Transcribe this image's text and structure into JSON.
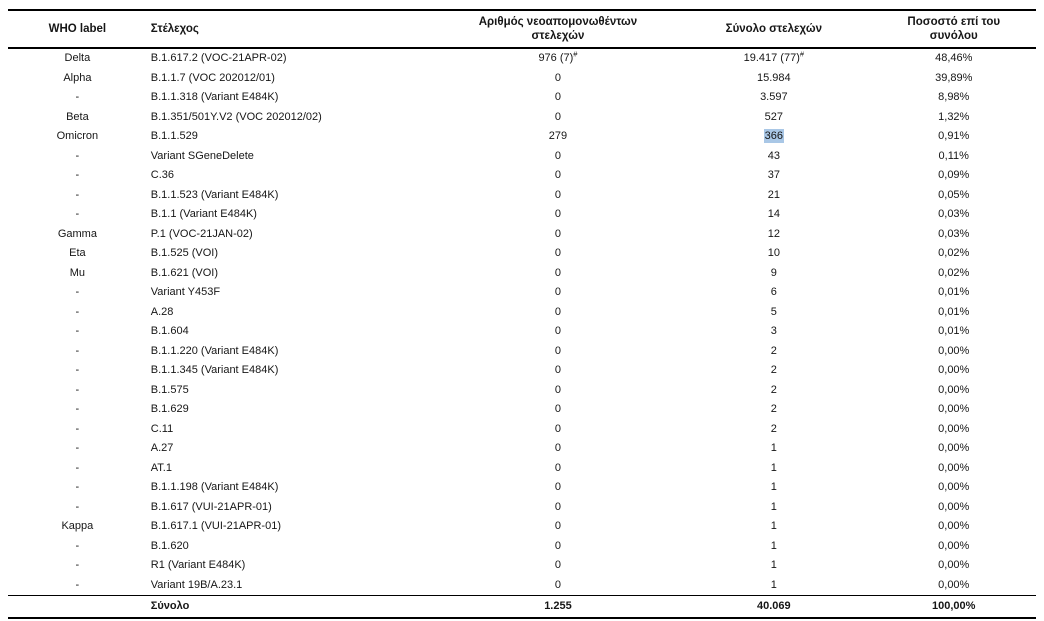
{
  "table": {
    "headers": {
      "who": "WHO label",
      "strain": "Στέλεχος",
      "new_isolates": "Αριθμός νεοαπομονωθέντων στελεχών",
      "total": "Σύνολο στελεχών",
      "pct": "Ποσοστό επί του συνόλου"
    },
    "rows": [
      {
        "who": "Delta",
        "strain": "B.1.617.2 (VOC-21APR-02)",
        "new_isolates": "976 (7)",
        "new_sup": "#",
        "total": "19.417 (77)",
        "total_sup": "#",
        "pct": "48,46%"
      },
      {
        "who": "Alpha",
        "strain": "B.1.1.7 (VOC 202012/01)",
        "new_isolates": "0",
        "total": "15.984",
        "pct": "39,89%"
      },
      {
        "who": "-",
        "strain": "B.1.1.318 (Variant E484K)",
        "new_isolates": "0",
        "total": "3.597",
        "pct": "8,98%"
      },
      {
        "who": "Beta",
        "strain": "B.1.351/501Y.V2 (VOC 202012/02)",
        "new_isolates": "0",
        "total": "527",
        "pct": "1,32%"
      },
      {
        "who": "Omicron",
        "strain": "B.1.1.529",
        "new_isolates": "279",
        "total": "366",
        "pct": "0,91%"
      },
      {
        "who": "-",
        "strain": "Variant SGeneDelete",
        "new_isolates": "0",
        "total": "43",
        "pct": "0,11%"
      },
      {
        "who": "-",
        "strain": "C.36",
        "new_isolates": "0",
        "total": "37",
        "pct": "0,09%"
      },
      {
        "who": "-",
        "strain": "B.1.1.523 (Variant E484K)",
        "new_isolates": "0",
        "total": "21",
        "pct": "0,05%"
      },
      {
        "who": "-",
        "strain": "B.1.1 (Variant E484K)",
        "new_isolates": "0",
        "total": "14",
        "pct": "0,03%"
      },
      {
        "who": "Gamma",
        "strain": "P.1 (VOC-21JAN-02)",
        "new_isolates": "0",
        "total": "12",
        "pct": "0,03%"
      },
      {
        "who": "Eta",
        "strain": "B.1.525 (VOI)",
        "new_isolates": "0",
        "total": "10",
        "pct": "0,02%"
      },
      {
        "who": "Mu",
        "strain": "B.1.621 (VOI)",
        "new_isolates": "0",
        "total": "9",
        "pct": "0,02%"
      },
      {
        "who": "-",
        "strain": "Variant Y453F",
        "new_isolates": "0",
        "total": "6",
        "pct": "0,01%"
      },
      {
        "who": "-",
        "strain": "A.28",
        "new_isolates": "0",
        "total": "5",
        "pct": "0,01%"
      },
      {
        "who": "-",
        "strain": "B.1.604",
        "new_isolates": "0",
        "total": "3",
        "pct": "0,01%"
      },
      {
        "who": "-",
        "strain": "B.1.1.220 (Variant E484K)",
        "new_isolates": "0",
        "total": "2",
        "pct": "0,00%"
      },
      {
        "who": "-",
        "strain": "B.1.1.345 (Variant E484K)",
        "new_isolates": "0",
        "total": "2",
        "pct": "0,00%"
      },
      {
        "who": "-",
        "strain": "B.1.575",
        "new_isolates": "0",
        "total": "2",
        "pct": "0,00%"
      },
      {
        "who": "-",
        "strain": "B.1.629",
        "new_isolates": "0",
        "total": "2",
        "pct": "0,00%"
      },
      {
        "who": "-",
        "strain": "C.11",
        "new_isolates": "0",
        "total": "2",
        "pct": "0,00%"
      },
      {
        "who": "-",
        "strain": "A.27",
        "new_isolates": "0",
        "total": "1",
        "pct": "0,00%"
      },
      {
        "who": "-",
        "strain": "AT.1",
        "new_isolates": "0",
        "total": "1",
        "pct": "0,00%"
      },
      {
        "who": "-",
        "strain": "B.1.1.198 (Variant E484K)",
        "new_isolates": "0",
        "total": "1",
        "pct": "0,00%"
      },
      {
        "who": "-",
        "strain": "B.1.617 (VUI-21APR-01)",
        "new_isolates": "0",
        "total": "1",
        "pct": "0,00%"
      },
      {
        "who": "Kappa",
        "strain": "B.1.617.1 (VUI-21APR-01)",
        "new_isolates": "0",
        "total": "1",
        "pct": "0,00%"
      },
      {
        "who": "-",
        "strain": "B.1.620",
        "new_isolates": "0",
        "total": "1",
        "pct": "0,00%"
      },
      {
        "who": "-",
        "strain": "R1 (Variant E484K)",
        "new_isolates": "0",
        "total": "1",
        "pct": "0,00%"
      },
      {
        "who": "-",
        "strain": "Variant 19B/A.23.1",
        "new_isolates": "0",
        "total": "1",
        "pct": "0,00%"
      }
    ],
    "highlight": {
      "row_index": 4,
      "field": "total",
      "color": "#a9c7e6"
    },
    "total_row": {
      "label": "Σύνολο",
      "new_isolates": "1.255",
      "total": "40.069",
      "pct": "100,00%"
    }
  }
}
